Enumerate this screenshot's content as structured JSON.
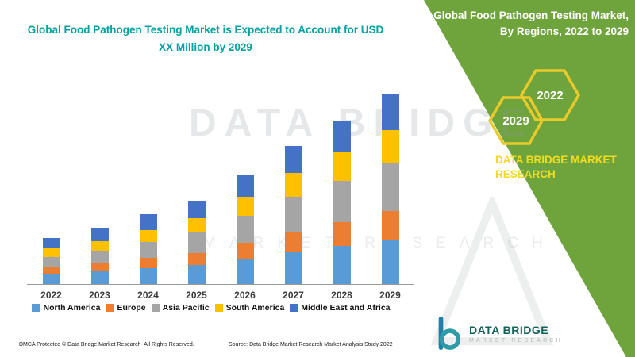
{
  "colors": {
    "panel_green": "#6FA43D",
    "title_teal": "#00A2A2",
    "hexagon_yellow": "#EACA2B",
    "brand_yellow": "#F2DB1F",
    "logo_teal": "#2D9CA8",
    "logo_text_green": "#156158",
    "watermark_gray": "#8F9698"
  },
  "header": {
    "title": "Global Food Pathogen Testing Market is Expected to Account for USD XX Million by 2029"
  },
  "side_panel": {
    "title": "Global Food Pathogen Testing Market, By Regions, 2022 to 2029",
    "hexagon_top": "2022",
    "hexagon_bottom": "2029",
    "brand": "DATA BRIDGE MARKET RESEARCH"
  },
  "chart_data": {
    "type": "bar",
    "stacked": true,
    "title": "Global Food Pathogen Testing Market is Expected to Account for USD XX Million by 2029",
    "categories": [
      "2022",
      "2023",
      "2024",
      "2025",
      "2026",
      "2027",
      "2028",
      "2029"
    ],
    "series": [
      {
        "name": "North America",
        "color": "#5B9BD5",
        "values": [
          13,
          16,
          20,
          24,
          32,
          40,
          48,
          56
        ]
      },
      {
        "name": "Europe",
        "color": "#ED7D31",
        "values": [
          8,
          10,
          13,
          15,
          20,
          26,
          30,
          36
        ]
      },
      {
        "name": "Asia Pacific",
        "color": "#A5A5A5",
        "values": [
          13,
          16,
          20,
          26,
          34,
          44,
          52,
          60
        ]
      },
      {
        "name": "South America",
        "color": "#FFC000",
        "values": [
          11,
          12,
          15,
          18,
          24,
          30,
          36,
          42
        ]
      },
      {
        "name": "Middle East and Africa",
        "color": "#4472C4",
        "values": [
          13,
          16,
          20,
          22,
          28,
          34,
          40,
          46
        ]
      }
    ],
    "xlabel": "",
    "ylabel": "",
    "ylim": [
      0,
      254
    ],
    "y_axis_labels_visible": false,
    "grid": false,
    "legend_position": "bottom",
    "units": "relative estimates (actual figures masked as USD XX Million)"
  },
  "watermark": {
    "line1": "DATA BRIDGE",
    "line2": "MARKET RESEARCH"
  },
  "logo": {
    "name": "DATA BRIDGE",
    "tagline": "MARKET RESEARCH"
  },
  "footer": {
    "dmca": "DMCA Protected © Data Bridge Market Research- All Rights Reserved.",
    "source": "Source: Data Bridge Market Research Market Analysis Study 2022"
  }
}
